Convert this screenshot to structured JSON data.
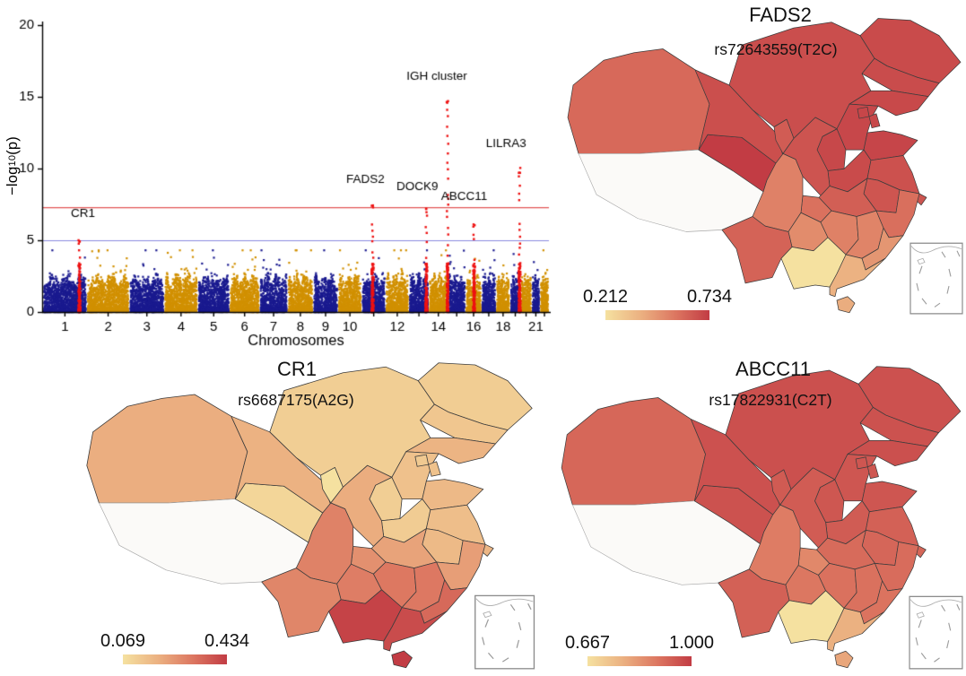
{
  "chart_data": [
    {
      "type": "scatter",
      "subtype": "manhattan",
      "xlabel": "Chromosomes",
      "ylabel": "-log10(p)",
      "ylabel_parts": {
        "main": "−log",
        "sub": "10",
        "tail": "(p)"
      },
      "ylim": [
        0,
        20
      ],
      "yticks": [
        0,
        5,
        10,
        15,
        20
      ],
      "xticks_labeled": [
        1,
        2,
        3,
        4,
        5,
        6,
        7,
        8,
        9,
        10,
        12,
        14,
        16,
        18,
        21
      ],
      "chromosomes": [
        1,
        2,
        3,
        4,
        5,
        6,
        7,
        8,
        9,
        10,
        11,
        12,
        13,
        14,
        15,
        16,
        17,
        18,
        19,
        20,
        21,
        22
      ],
      "chromosome_lengths_mb": [
        249,
        243,
        198,
        191,
        181,
        171,
        159,
        146,
        141,
        136,
        135,
        133,
        114,
        107,
        102,
        90,
        83,
        80,
        59,
        64,
        47,
        51
      ],
      "thresholds": [
        {
          "name": "genome-wide",
          "value": 7.3
        },
        {
          "name": "suggestive",
          "value": 5.0
        }
      ],
      "significant_loci": [
        {
          "label": "CR1",
          "chromosome": 1,
          "position_mb": 207,
          "peak_neglog10p": 5.1
        },
        {
          "label": "FADS2",
          "chromosome": 11,
          "position_mb": 61,
          "peak_neglog10p": 7.5
        },
        {
          "label": "DOCK9",
          "chromosome": 13,
          "position_mb": 99,
          "peak_neglog10p": 7.3
        },
        {
          "label": "IGH cluster",
          "chromosome": 14,
          "position_mb": 106,
          "peak_neglog10p": 14.8
        },
        {
          "label": "ABCC11",
          "chromosome": 16,
          "position_mb": 48,
          "peak_neglog10p": 6.2
        },
        {
          "label": "LILRA3",
          "chromosome": 19,
          "position_mb": 54,
          "peak_neglog10p": 10.0
        }
      ],
      "label_offsets": {
        "CR1": [
          4,
          6.6
        ],
        "FADS2": [
          -8,
          9.0
        ],
        "DOCK9": [
          -10,
          8.5
        ],
        "IGH cluster": [
          -12,
          16.2
        ],
        "ABCC11": [
          -11,
          7.8
        ],
        "LILRA3": [
          -15,
          11.5
        ]
      }
    },
    {
      "type": "choropleth",
      "title": "FADS2",
      "subtitle": "rs72643559(T2C)",
      "legend": {
        "min_label": "0.212",
        "max_label": "0.734"
      },
      "value_range": [
        0.212,
        0.734
      ],
      "no_data_regions": [
        "Xizang",
        "Taiwan"
      ],
      "values": {
        "Xinjiang": 0.601,
        "Xizang": null,
        "Qinghai": 0.734,
        "Gansu": 0.678,
        "Inner Mongolia": 0.682,
        "Ningxia": 0.64,
        "Heilongjiang": 0.69,
        "Jilin": 0.688,
        "Liaoning": 0.697,
        "Hebei": 0.701,
        "Beijing": 0.705,
        "Tianjin": 0.7,
        "Shanxi": 0.699,
        "Shandong": 0.707,
        "Henan": 0.69,
        "Shaanxi": 0.664,
        "Jiangsu": 0.672,
        "Anhui": 0.66,
        "Shanghai": 0.662,
        "Hubei": 0.632,
        "Chongqing": 0.58,
        "Sichuan": 0.531,
        "Guizhou": 0.5,
        "Yunnan": 0.621,
        "Hunan": 0.532,
        "Jiangxi": 0.522,
        "Zhejiang": 0.585,
        "Fujian": 0.47,
        "Guangdong": 0.382,
        "Guangxi": 0.212,
        "Hainan": 0.401,
        "Taiwan": null
      }
    },
    {
      "type": "choropleth",
      "title": "CR1",
      "subtitle": "rs6687175(A2G)",
      "legend": {
        "min_label": "0.069",
        "max_label": "0.434"
      },
      "value_range": [
        0.069,
        0.434
      ],
      "no_data_regions": [
        "Xizang",
        "Taiwan"
      ],
      "values": {
        "Xinjiang": 0.198,
        "Xizang": null,
        "Qinghai": 0.098,
        "Gansu": 0.19,
        "Inner Mongolia": 0.118,
        "Ningxia": 0.069,
        "Heilongjiang": 0.121,
        "Jilin": 0.138,
        "Liaoning": 0.185,
        "Hebei": 0.15,
        "Beijing": 0.13,
        "Tianjin": 0.148,
        "Shanxi": 0.118,
        "Shandong": 0.17,
        "Henan": 0.122,
        "Shaanxi": 0.2,
        "Jiangsu": 0.158,
        "Anhui": 0.168,
        "Shanghai": 0.178,
        "Hubei": 0.221,
        "Chongqing": 0.262,
        "Sichuan": 0.291,
        "Guizhou": 0.3,
        "Yunnan": 0.282,
        "Hunan": 0.312,
        "Jiangxi": 0.31,
        "Zhejiang": 0.232,
        "Fujian": 0.342,
        "Guangdong": 0.401,
        "Guangxi": 0.42,
        "Hainan": 0.434,
        "Taiwan": null
      }
    },
    {
      "type": "choropleth",
      "title": "ABCC11",
      "subtitle": "rs17822931(C2T)",
      "legend": {
        "min_label": "0.667",
        "max_label": "1.000"
      },
      "value_range": [
        0.667,
        1.0
      ],
      "no_data_regions": [
        "Xizang",
        "Taiwan"
      ],
      "values": {
        "Xinjiang": 0.92,
        "Xizang": null,
        "Qinghai": 0.958,
        "Gansu": 0.96,
        "Inner Mongolia": 0.962,
        "Ningxia": 0.942,
        "Heilongjiang": 0.96,
        "Jilin": 0.958,
        "Liaoning": 0.962,
        "Hebei": 0.952,
        "Beijing": 0.952,
        "Tianjin": 0.95,
        "Shanxi": 0.95,
        "Shandong": 0.951,
        "Henan": 0.941,
        "Shaanxi": 0.94,
        "Jiangsu": 0.93,
        "Anhui": 0.921,
        "Shanghai": 0.922,
        "Hubei": 0.912,
        "Chongqing": 0.858,
        "Sichuan": 0.88,
        "Guizhou": 0.89,
        "Yunnan": 0.93,
        "Hunan": 0.9,
        "Jiangxi": 0.901,
        "Zhejiang": 0.91,
        "Fujian": 0.898,
        "Guangdong": 0.78,
        "Guangxi": 0.667,
        "Hainan": 0.8,
        "Taiwan": null
      }
    }
  ],
  "colors": {
    "scale_stops": [
      [
        0,
        "#F5E1A0"
      ],
      [
        0.35,
        "#EBAF80"
      ],
      [
        0.68,
        "#DC7560"
      ],
      [
        1,
        "#C23C44"
      ]
    ],
    "no_data_fill": "#FBFAF8",
    "no_data_border": "#A9A9A9",
    "province_border": "#3C3C3C",
    "odd_chromosome": "#1A1A8F",
    "even_chromosome": "#D19000",
    "highlight": "#EE1111",
    "genome_wide_line": "#E25555",
    "suggestive_line": "#8A8ADF",
    "axis": "#000000"
  }
}
